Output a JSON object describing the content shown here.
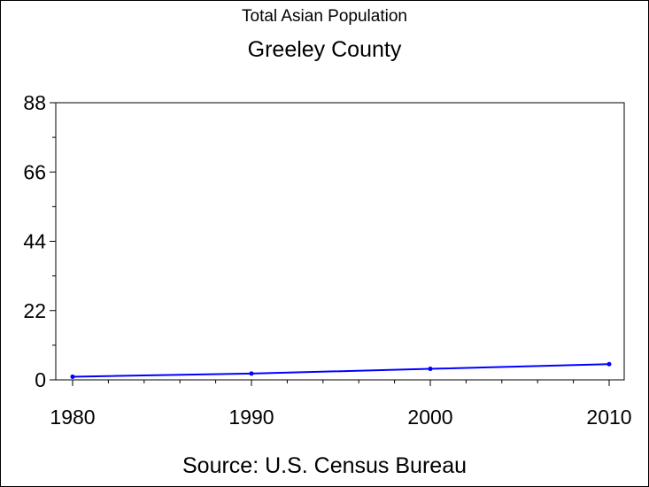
{
  "chart_data": {
    "type": "line",
    "title": "Total Asian Population",
    "subtitle": "Greeley County",
    "source": "Source: U.S. Census Bureau",
    "xlabel": "",
    "ylabel": "",
    "xlim": [
      1980,
      2010
    ],
    "ylim": [
      0,
      88
    ],
    "x_ticks": [
      "1980",
      "1990",
      "2000",
      "2010"
    ],
    "y_ticks": [
      "0",
      "22",
      "44",
      "66",
      "88"
    ],
    "grid": false,
    "series": [
      {
        "color": "#0000ff",
        "x": [
          1980,
          1990,
          2000,
          2010
        ],
        "y": [
          1,
          2,
          3.5,
          5
        ]
      }
    ]
  }
}
